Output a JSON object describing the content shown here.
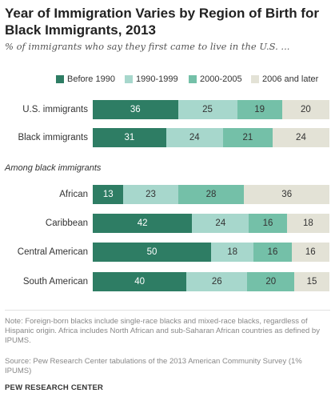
{
  "chart_data": {
    "type": "bar",
    "orientation": "horizontal",
    "stacked": true,
    "title": "Year of Immigration Varies by Region of Birth for Black Immigrants, 2013",
    "subtitle": "% of immigrants who say they first came to live in the U.S. ...",
    "legend_position": "top",
    "series": [
      {
        "name": "Before 1990",
        "color": "#2e7d64"
      },
      {
        "name": "1990-1999",
        "color": "#a7d7cc"
      },
      {
        "name": "2000-2005",
        "color": "#74c0a8"
      },
      {
        "name": "2006 and later",
        "color": "#e3e2d6"
      }
    ],
    "groups": [
      {
        "label": "",
        "rows": [
          {
            "category": "U.S. immigrants",
            "values": [
              36,
              25,
              19,
              20
            ]
          },
          {
            "category": "Black immigrants",
            "values": [
              31,
              24,
              21,
              24
            ]
          }
        ]
      },
      {
        "label": "Among black immigrants",
        "rows": [
          {
            "category": "African",
            "values": [
              13,
              23,
              28,
              36
            ]
          },
          {
            "category": "Caribbean",
            "values": [
              42,
              24,
              16,
              18
            ]
          },
          {
            "category": "Central American",
            "values": [
              50,
              18,
              16,
              16
            ]
          },
          {
            "category": "South American",
            "values": [
              40,
              26,
              20,
              15
            ]
          }
        ]
      }
    ],
    "xlim": [
      0,
      100
    ]
  },
  "footer": {
    "note": "Note: Foreign-born blacks include single-race blacks and mixed-race blacks, regardless of Hispanic origin. Africa includes North African and sub-Saharan African countries as defined by IPUMS.",
    "source": "Source: Pew Research Center tabulations of the 2013 American Community Survey (1% IPUMS)",
    "credit": "PEW RESEARCH CENTER"
  }
}
